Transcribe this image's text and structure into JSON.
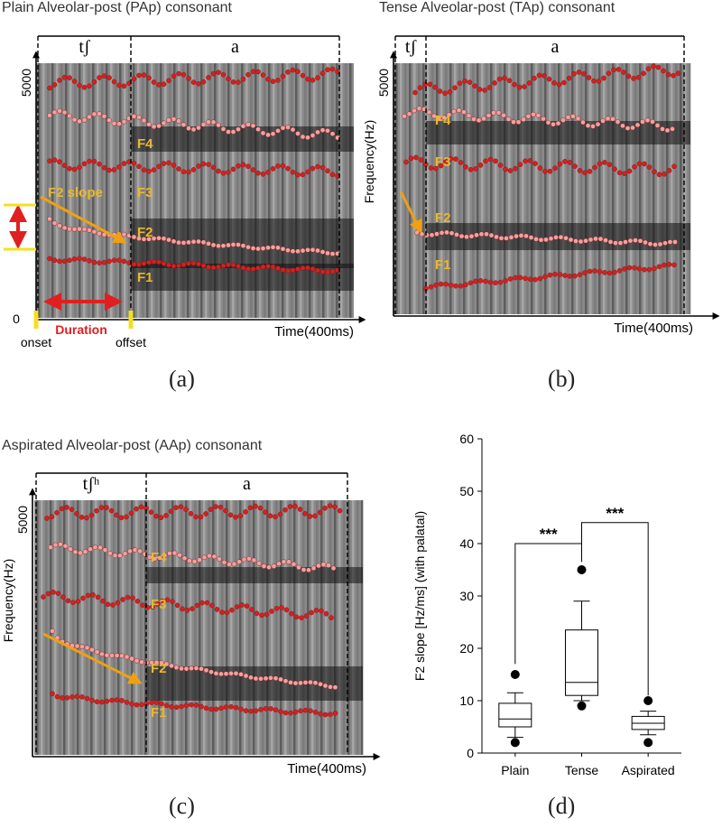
{
  "panels": [
    {
      "id": "a",
      "title": "Plain Alveolar-post (PAp) consonant",
      "label": "(a)",
      "segment1": "tʃ",
      "segment2": "a",
      "y_top_tick": "5000",
      "y_zero": "0",
      "y_label": "",
      "x_label": "Time(400ms)",
      "formants": [
        "F4",
        "F3",
        "F2",
        "F1"
      ],
      "annotations": {
        "slope": "F2 slope",
        "duration": "Duration",
        "onset": "onset",
        "offset": "offset"
      }
    },
    {
      "id": "b",
      "title": "Tense Alveolar-post (TAp) consonant",
      "label": "(b)",
      "segment1": "tʃ",
      "segment2": "a",
      "y_top_tick": "5000",
      "y_label": "Frequency(Hz)",
      "x_label": "Time(400ms)",
      "formants": [
        "F4",
        "F3",
        "F2",
        "F1"
      ]
    },
    {
      "id": "c",
      "title": "Aspirated Alveolar-post (AAp) consonant",
      "label": "(c)",
      "segment1": "tʃʰ",
      "segment2": "a",
      "y_top_tick": "5000",
      "y_label": "Frequency(Hz)",
      "x_label": "Time(400ms)",
      "formants": [
        "F4",
        "F3",
        "F2",
        "F1"
      ]
    }
  ],
  "chart_data": {
    "type": "box",
    "label": "(d)",
    "ylabel": "F2 slope [Hz/ms] (with palatal)",
    "xlabel": "",
    "ylim": [
      0,
      60
    ],
    "yticks": [
      "0",
      "10",
      "20",
      "30",
      "40",
      "50",
      "60"
    ],
    "categories": [
      "Plain",
      "Tense",
      "Aspirated"
    ],
    "boxes": [
      {
        "category": "Plain",
        "whisker_low": 3,
        "q1": 5,
        "median": 6.5,
        "q3": 9.5,
        "whisker_high": 11.5,
        "outliers": [
          2,
          15
        ]
      },
      {
        "category": "Tense",
        "whisker_low": 10,
        "q1": 11,
        "median": 13.5,
        "q3": 23.5,
        "whisker_high": 29,
        "outliers": [
          9,
          35
        ]
      },
      {
        "category": "Aspirated",
        "whisker_low": 3.5,
        "q1": 4.5,
        "median": 5.7,
        "q3": 7,
        "whisker_high": 8,
        "outliers": [
          2,
          10
        ]
      }
    ],
    "significance": [
      {
        "from": "Plain",
        "to": "Tense",
        "label": "***"
      },
      {
        "from": "Tense",
        "to": "Aspirated",
        "label": "***"
      }
    ],
    "grid": false,
    "legend": "none"
  },
  "colors": {
    "formant_dot": "#f2a0a0",
    "formant_dot_dark": "#d42020",
    "formant_label": "#e8b830",
    "arrow": "#f0a010",
    "duration": "#e02020",
    "onset_marker": "#f5e020"
  }
}
